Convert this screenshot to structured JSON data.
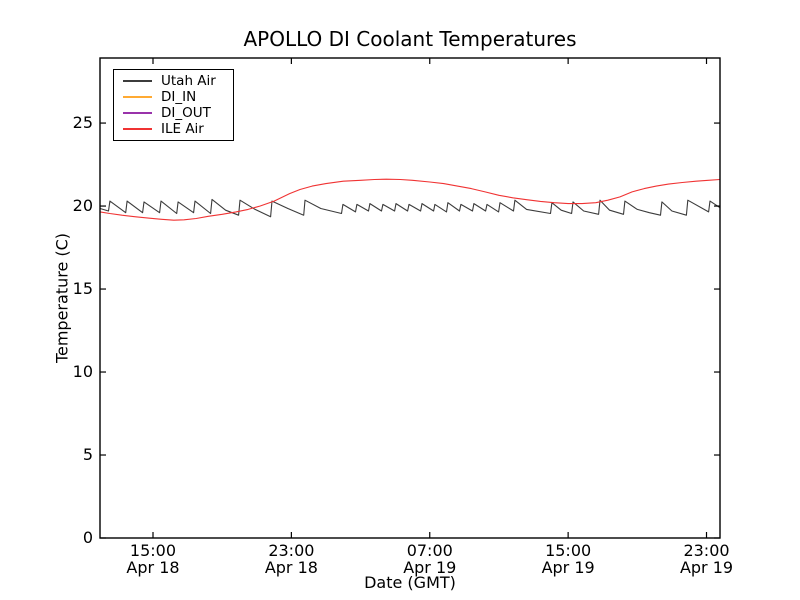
{
  "figure": {
    "background": "#ffffff",
    "frame_color": "#000000"
  },
  "chart_data": {
    "type": "line",
    "title": "APOLLO DI Coolant Temperatures",
    "xlabel": "Date (GMT)",
    "ylabel": "Temperature (C)",
    "grid": false,
    "legend_position": "upper-left",
    "x_encoding": "hours, where 15:00 Apr 18 GMT = 3",
    "xlim": [
      -0.064,
      35.78
    ],
    "ylim": [
      0,
      28.92
    ],
    "y_ticks": [
      0,
      5,
      10,
      15,
      20,
      25
    ],
    "x_ticks": [
      {
        "x": 3,
        "time": "15:00",
        "date": "Apr 18"
      },
      {
        "x": 11,
        "time": "23:00",
        "date": "Apr 18"
      },
      {
        "x": 19,
        "time": "07:00",
        "date": "Apr 19"
      },
      {
        "x": 27,
        "time": "15:00",
        "date": "Apr 19"
      },
      {
        "x": 35,
        "time": "23:00",
        "date": "Apr 19"
      }
    ],
    "series": [
      {
        "name": "Utah Air",
        "color": "#3c3c3c",
        "points": [
          [
            -0.06,
            19.85
          ],
          [
            0.43,
            19.7
          ],
          [
            0.51,
            20.3
          ],
          [
            1.42,
            19.6
          ],
          [
            1.5,
            20.3
          ],
          [
            2.4,
            19.6
          ],
          [
            2.48,
            20.25
          ],
          [
            3.38,
            19.6
          ],
          [
            3.46,
            20.3
          ],
          [
            4.37,
            19.55
          ],
          [
            4.45,
            20.25
          ],
          [
            5.35,
            19.6
          ],
          [
            5.43,
            20.3
          ],
          [
            6.33,
            19.55
          ],
          [
            6.41,
            20.4
          ],
          [
            7.2,
            19.75
          ],
          [
            7.95,
            19.45
          ],
          [
            8.03,
            20.35
          ],
          [
            8.9,
            19.8
          ],
          [
            9.8,
            19.35
          ],
          [
            9.88,
            20.3
          ],
          [
            10.8,
            19.85
          ],
          [
            11.71,
            19.45
          ],
          [
            11.79,
            20.35
          ],
          [
            12.7,
            19.85
          ],
          [
            13.9,
            19.55
          ],
          [
            13.98,
            20.1
          ],
          [
            14.71,
            19.65
          ],
          [
            14.79,
            20.1
          ],
          [
            15.46,
            19.7
          ],
          [
            15.54,
            20.15
          ],
          [
            16.21,
            19.7
          ],
          [
            16.29,
            20.1
          ],
          [
            16.97,
            19.7
          ],
          [
            17.05,
            20.15
          ],
          [
            17.72,
            19.7
          ],
          [
            17.8,
            20.1
          ],
          [
            18.47,
            19.7
          ],
          [
            18.55,
            20.15
          ],
          [
            19.22,
            19.7
          ],
          [
            19.3,
            20.1
          ],
          [
            19.97,
            19.65
          ],
          [
            20.05,
            20.2
          ],
          [
            20.72,
            19.7
          ],
          [
            20.8,
            20.1
          ],
          [
            21.47,
            19.7
          ],
          [
            21.55,
            20.15
          ],
          [
            22.23,
            19.7
          ],
          [
            22.31,
            20.1
          ],
          [
            22.98,
            19.65
          ],
          [
            23.06,
            20.2
          ],
          [
            23.84,
            19.7
          ],
          [
            23.92,
            20.35
          ],
          [
            24.6,
            19.8
          ],
          [
            25.98,
            19.55
          ],
          [
            26.06,
            20.2
          ],
          [
            26.6,
            19.75
          ],
          [
            27.2,
            19.55
          ],
          [
            27.28,
            20.25
          ],
          [
            27.9,
            19.7
          ],
          [
            28.76,
            19.5
          ],
          [
            28.84,
            20.35
          ],
          [
            29.4,
            19.75
          ],
          [
            30.2,
            19.5
          ],
          [
            30.28,
            20.3
          ],
          [
            31.0,
            19.8
          ],
          [
            31.7,
            19.6
          ],
          [
            32.34,
            19.45
          ],
          [
            32.42,
            20.25
          ],
          [
            33.0,
            19.7
          ],
          [
            33.84,
            19.45
          ],
          [
            33.92,
            20.35
          ],
          [
            35.12,
            19.65
          ],
          [
            35.2,
            20.3
          ],
          [
            35.78,
            19.9
          ]
        ]
      },
      {
        "name": "DI_IN",
        "color": "#ffaa33",
        "points": []
      },
      {
        "name": "DI_OUT",
        "color": "#9933aa",
        "points": []
      },
      {
        "name": "ILE Air",
        "color": "#f03333",
        "points": [
          [
            -0.06,
            19.65
          ],
          [
            0.5,
            19.55
          ],
          [
            1.2,
            19.45
          ],
          [
            2,
            19.35
          ],
          [
            2.8,
            19.27
          ],
          [
            3.5,
            19.2
          ],
          [
            4.2,
            19.15
          ],
          [
            4.8,
            19.17
          ],
          [
            5.5,
            19.25
          ],
          [
            6.2,
            19.38
          ],
          [
            7,
            19.5
          ],
          [
            7.8,
            19.65
          ],
          [
            8.5,
            19.8
          ],
          [
            9.2,
            20.0
          ],
          [
            10,
            20.3
          ],
          [
            10.9,
            20.75
          ],
          [
            11.5,
            21.0
          ],
          [
            12.2,
            21.2
          ],
          [
            13,
            21.35
          ],
          [
            14,
            21.5
          ],
          [
            15,
            21.55
          ],
          [
            15.8,
            21.6
          ],
          [
            16.5,
            21.62
          ],
          [
            17.3,
            21.6
          ],
          [
            18,
            21.55
          ],
          [
            19,
            21.45
          ],
          [
            19.8,
            21.35
          ],
          [
            20.6,
            21.2
          ],
          [
            21.4,
            21.05
          ],
          [
            22.2,
            20.85
          ],
          [
            23,
            20.65
          ],
          [
            23.8,
            20.5
          ],
          [
            24.6,
            20.38
          ],
          [
            25.4,
            20.28
          ],
          [
            26.2,
            20.2
          ],
          [
            27,
            20.15
          ],
          [
            27.8,
            20.15
          ],
          [
            28.6,
            20.2
          ],
          [
            29.3,
            20.35
          ],
          [
            30,
            20.55
          ],
          [
            30.7,
            20.85
          ],
          [
            31.4,
            21.05
          ],
          [
            32.1,
            21.2
          ],
          [
            32.8,
            21.32
          ],
          [
            33.6,
            21.42
          ],
          [
            34.4,
            21.5
          ],
          [
            35.1,
            21.55
          ],
          [
            35.78,
            21.6
          ]
        ]
      }
    ]
  }
}
